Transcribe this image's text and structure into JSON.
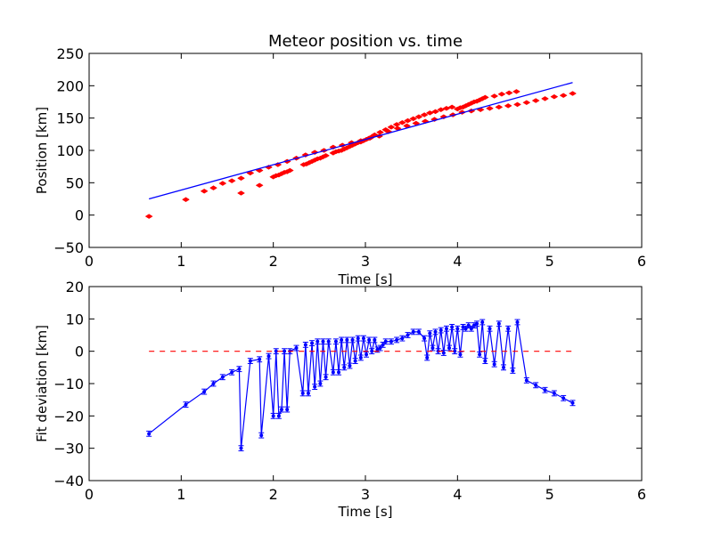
{
  "chart_data": [
    {
      "type": "scatter",
      "title": "Meteor position vs. time",
      "xlabel": "Time [s]",
      "ylabel": "Position [km]",
      "xlim": [
        0,
        6
      ],
      "ylim": [
        -50,
        250
      ],
      "xticks": [
        "0",
        "1",
        "2",
        "3",
        "4",
        "5",
        "6"
      ],
      "yticks": [
        "−50",
        "0",
        "50",
        "100",
        "150",
        "200",
        "250"
      ],
      "grid": false,
      "colors": {
        "data": "#ff0000",
        "fit": "#0000ff"
      },
      "series": [
        {
          "kind": "scatter",
          "marker": "diamond",
          "x": [
            0.65,
            1.05,
            1.25,
            1.35,
            1.45,
            1.55,
            1.65,
            1.75,
            1.85,
            1.95,
            2.05,
            2.15,
            2.25,
            2.35,
            2.45,
            2.55,
            2.65,
            2.75,
            2.85,
            2.95,
            3.05,
            3.15,
            3.25,
            3.35,
            3.45,
            3.55,
            3.65,
            3.75,
            3.85,
            3.95,
            4.05,
            4.15,
            4.25,
            4.35,
            4.45,
            4.55,
            4.65,
            4.75,
            4.85,
            4.95,
            5.05,
            5.15,
            5.25,
            1.65,
            1.85,
            2.0,
            2.03,
            2.06,
            2.09,
            2.12,
            2.15,
            2.18,
            2.33,
            2.36,
            2.39,
            2.42,
            2.45,
            2.48,
            2.51,
            2.54,
            2.57,
            2.65,
            2.68,
            2.71,
            2.74,
            2.77,
            2.8,
            2.83,
            2.86,
            2.89,
            2.92,
            2.95,
            2.98,
            3.01,
            3.04,
            3.07,
            3.1,
            3.16,
            3.22,
            3.28,
            3.34,
            3.4,
            3.46,
            3.52,
            3.58,
            3.64,
            3.7,
            3.76,
            3.82,
            3.88,
            3.94,
            4.0,
            4.03,
            4.06,
            4.09,
            4.12,
            4.15,
            4.18,
            4.21,
            4.24,
            4.27,
            4.3,
            4.4,
            4.48,
            4.56,
            4.64
          ],
          "y": [
            -2,
            24,
            37,
            42,
            49,
            53,
            57,
            65,
            69,
            74,
            78,
            83,
            88,
            93,
            97,
            100,
            105,
            108,
            112,
            115,
            119,
            122,
            129,
            134,
            138,
            142,
            145,
            148,
            152,
            155,
            159,
            161,
            163,
            165,
            167,
            169,
            171,
            174,
            177,
            180,
            183,
            185,
            188,
            34,
            46,
            59,
            61,
            62,
            64,
            66,
            67,
            69,
            78,
            79,
            81,
            83,
            85,
            87,
            88,
            90,
            92,
            96,
            98,
            99,
            100,
            102,
            104,
            106,
            108,
            110,
            112,
            113,
            115,
            117,
            119,
            121,
            124,
            128,
            132,
            136,
            140,
            143,
            146,
            149,
            152,
            155,
            158,
            160,
            163,
            165,
            167,
            164,
            166,
            167,
            169,
            171,
            173,
            175,
            176,
            178,
            180,
            182,
            184,
            187,
            189,
            191
          ]
        },
        {
          "kind": "line",
          "x": [
            0.65,
            5.25
          ],
          "y": [
            25,
            205
          ]
        }
      ]
    },
    {
      "type": "line",
      "title": "",
      "xlabel": "Time [s]",
      "ylabel": "Fit deviation [km]",
      "xlim": [
        0,
        6
      ],
      "ylim": [
        -40,
        20
      ],
      "xticks": [
        "0",
        "1",
        "2",
        "3",
        "4",
        "5",
        "6"
      ],
      "yticks": [
        "−40",
        "−30",
        "−20",
        "−10",
        "0",
        "10",
        "20"
      ],
      "grid": false,
      "colors": {
        "line": "#0000ff",
        "zero": "#ff0000"
      },
      "series": [
        {
          "kind": "errorbar",
          "error": 0.8,
          "x": [
            0.65,
            1.05,
            1.25,
            1.35,
            1.45,
            1.55,
            1.63,
            1.65,
            1.75,
            1.85,
            1.87,
            1.95,
            2.0,
            2.03,
            2.06,
            2.09,
            2.12,
            2.15,
            2.18,
            2.25,
            2.32,
            2.35,
            2.38,
            2.42,
            2.45,
            2.48,
            2.51,
            2.54,
            2.57,
            2.6,
            2.65,
            2.68,
            2.71,
            2.74,
            2.77,
            2.8,
            2.83,
            2.86,
            2.89,
            2.92,
            2.95,
            2.98,
            3.01,
            3.04,
            3.07,
            3.1,
            3.13,
            3.16,
            3.19,
            3.22,
            3.28,
            3.34,
            3.4,
            3.46,
            3.52,
            3.58,
            3.64,
            3.67,
            3.7,
            3.73,
            3.76,
            3.79,
            3.82,
            3.85,
            3.88,
            3.91,
            3.94,
            3.97,
            4.0,
            4.03,
            4.06,
            4.09,
            4.12,
            4.15,
            4.18,
            4.21,
            4.24,
            4.27,
            4.3,
            4.35,
            4.4,
            4.45,
            4.5,
            4.55,
            4.6,
            4.65,
            4.75,
            4.85,
            4.95,
            5.05,
            5.15,
            5.25
          ],
          "y": [
            -25.5,
            -16.5,
            -12.5,
            -10.0,
            -8.0,
            -6.5,
            -5.5,
            -30.0,
            -3.0,
            -2.5,
            -26.0,
            -1.5,
            -20.0,
            0.0,
            -20.0,
            -18.0,
            0.0,
            -18.0,
            0.0,
            1.0,
            -13.0,
            2.0,
            -13.0,
            2.5,
            -11.0,
            3.0,
            -10.0,
            3.0,
            -8.0,
            3.0,
            -6.5,
            3.0,
            -6.5,
            3.5,
            -5.0,
            3.5,
            -4.5,
            3.5,
            -3.0,
            4.0,
            -2.0,
            4.0,
            -1.0,
            3.5,
            0.0,
            3.5,
            0.5,
            1.0,
            2.0,
            3.0,
            3.0,
            3.5,
            4.0,
            5.0,
            6.0,
            6.0,
            4.0,
            -2.0,
            5.5,
            1.0,
            6.0,
            0.0,
            6.5,
            -0.5,
            7.0,
            1.0,
            7.5,
            0.0,
            7.0,
            -1.0,
            7.5,
            7.0,
            8.0,
            7.0,
            8.0,
            8.5,
            -1.0,
            9.0,
            -3.0,
            7.0,
            -4.0,
            8.5,
            -5.0,
            7.0,
            -6.0,
            9.0,
            -9.0,
            -10.5,
            -12.0,
            -13.0,
            -14.5,
            -16.0
          ]
        },
        {
          "kind": "hline",
          "y": 0,
          "x": [
            0.65,
            5.25
          ]
        }
      ]
    }
  ]
}
